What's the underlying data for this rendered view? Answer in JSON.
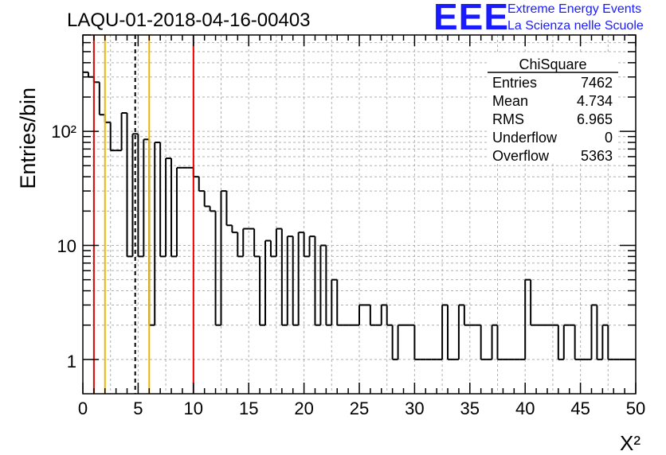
{
  "chart_data": {
    "type": "histogram",
    "title": "LAQU-01-2018-04-16-00403",
    "xlabel": "X²",
    "ylabel": "Entries/bin",
    "xlim": [
      0,
      50
    ],
    "ylim": [
      0.5,
      700
    ],
    "yscale": "log",
    "grid": true,
    "bin_width": 0.5,
    "x_ticks": [
      "0",
      "5",
      "10",
      "15",
      "20",
      "25",
      "30",
      "35",
      "40",
      "45",
      "50"
    ],
    "y_tick_labels": [
      "1",
      "10",
      "10²"
    ],
    "values": [
      330,
      300,
      270,
      140,
      120,
      68,
      68,
      145,
      8,
      95,
      8,
      85,
      2,
      80,
      8,
      58,
      8,
      48,
      48,
      48,
      40,
      30,
      22,
      20,
      2,
      30,
      15,
      13,
      8,
      14,
      14,
      8,
      2,
      11,
      8,
      14,
      2,
      12,
      2,
      13,
      8,
      12,
      2,
      10,
      2,
      5,
      2,
      2,
      2,
      2,
      3,
      3,
      2,
      2,
      3,
      2,
      1,
      2,
      2,
      2,
      1,
      1,
      1,
      1,
      1,
      3,
      1,
      1,
      3,
      2,
      2,
      2,
      1,
      1,
      2,
      1,
      1,
      1,
      1,
      1,
      5,
      2,
      2,
      2,
      2,
      2,
      1,
      2,
      2,
      1,
      1,
      1,
      3,
      1,
      2,
      1,
      1,
      1,
      1,
      1
    ],
    "vertical_lines": [
      {
        "x": 1.0,
        "color": "#e00000",
        "style": "solid"
      },
      {
        "x": 2.0,
        "color": "#f0b400",
        "style": "solid"
      },
      {
        "x": 4.734,
        "color": "#000000",
        "style": "dashed"
      },
      {
        "x": 6.0,
        "color": "#f0b400",
        "style": "solid"
      },
      {
        "x": 10.0,
        "color": "#e00000",
        "style": "solid"
      }
    ],
    "stats_box": {
      "title": "ChiSquare",
      "rows": [
        {
          "label": "Entries",
          "value": "7462"
        },
        {
          "label": "Mean",
          "value": "4.734"
        },
        {
          "label": "RMS",
          "value": "6.965"
        },
        {
          "label": "Underflow",
          "value": "0"
        },
        {
          "label": "Overflow",
          "value": "5363"
        }
      ]
    }
  },
  "logo": {
    "letters": "EEE",
    "line1": "Extreme Energy Events",
    "line2": "La Scienza nelle Scuole"
  },
  "colors": {
    "logo": "#1a1aff",
    "red_line": "#e00000",
    "yellow_line": "#f0b400"
  }
}
